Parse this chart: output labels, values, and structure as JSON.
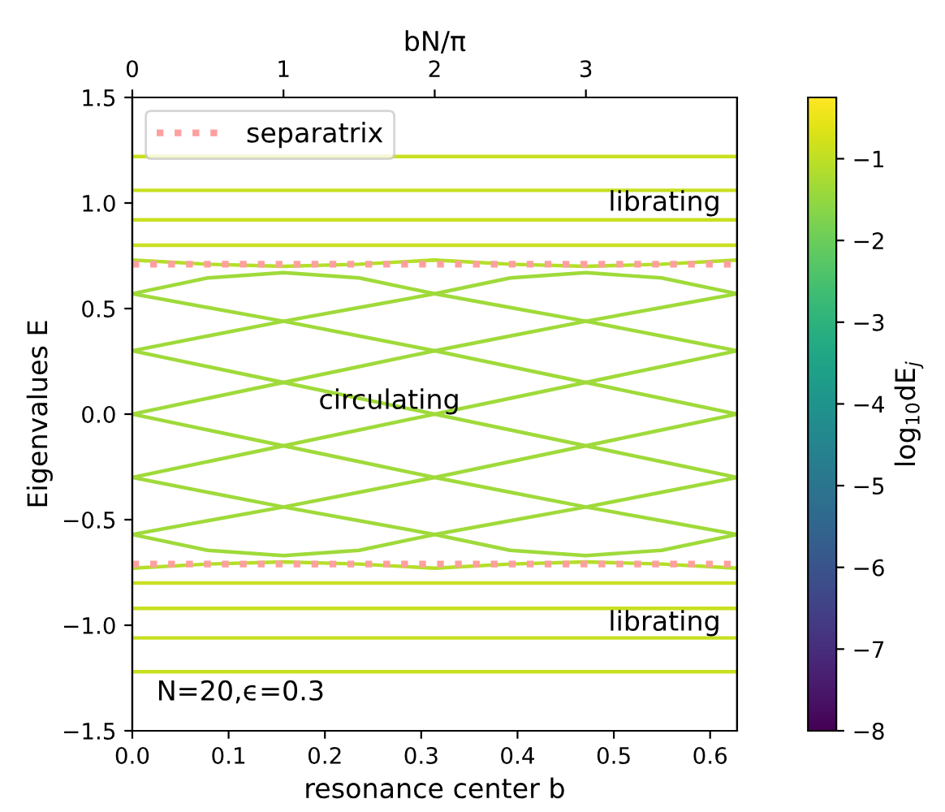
{
  "chart_data": {
    "type": "line",
    "xlabel": "resonance center b",
    "ylabel": "Eigenvalues E",
    "x2label": "bN/π",
    "clabel": "log$_{10}$dE$_{j}$",
    "xlim": [
      0,
      0.628
    ],
    "xticks": [
      {
        "value": 0,
        "label": "0.0"
      },
      0.1,
      0.2,
      0.3,
      0.4,
      0.5,
      0.6
    ],
    "x2lim": [
      0,
      4
    ],
    "x2ticks": [
      0,
      1,
      2,
      3
    ],
    "ylim": [
      -1.5,
      1.5
    ],
    "yticks": [
      -1.5,
      {
        "value": -1,
        "label": "−1.0"
      },
      -0.5,
      {
        "value": 0,
        "label": "0.0"
      },
      0.5,
      {
        "value": 1,
        "label": "1.0"
      },
      1.5
    ],
    "clim": [
      -8,
      -0.25
    ],
    "cticks": [
      -8,
      -7,
      -6,
      -5,
      -4,
      -3,
      -2,
      -1
    ],
    "legend": "top left",
    "grid": false,
    "series": [
      {
        "name": "separatrix",
        "color": "#ff9f9f",
        "line_style": "dotted",
        "x": [
          0,
          0.628
        ],
        "values": [
          0.71,
          0.71
        ]
      },
      {
        "color": "#ff9f9f",
        "line_style": "dotted",
        "x": [
          0,
          0.628
        ],
        "values": [
          -0.71,
          -0.71
        ]
      },
      {
        "color": "#c8e020",
        "line_style": "solid",
        "x": [
          0,
          0.628
        ],
        "values": [
          1.22,
          1.22
        ]
      },
      {
        "color": "#c8e020",
        "line_style": "solid",
        "x": [
          0,
          0.628
        ],
        "values": [
          1.06,
          1.06
        ]
      },
      {
        "color": "#c8e020",
        "line_style": "solid",
        "x": [
          0,
          0.628
        ],
        "values": [
          0.92,
          0.92
        ]
      },
      {
        "color": "#c8e020",
        "line_style": "solid",
        "x": [
          0,
          0.628
        ],
        "values": [
          0.8,
          0.8
        ]
      },
      {
        "color": "#c8e020",
        "line_style": "solid",
        "x": [
          0,
          0.628
        ],
        "values": [
          -0.8,
          -0.8
        ]
      },
      {
        "color": "#c8e020",
        "line_style": "solid",
        "x": [
          0,
          0.628
        ],
        "values": [
          -0.92,
          -0.92
        ]
      },
      {
        "color": "#c8e020",
        "line_style": "solid",
        "x": [
          0,
          0.628
        ],
        "values": [
          -1.06,
          -1.06
        ]
      },
      {
        "color": "#c8e020",
        "line_style": "solid",
        "x": [
          0,
          0.628
        ],
        "values": [
          -1.22,
          -1.22
        ]
      },
      {
        "color": "#b5de2b",
        "line_style": "solid",
        "x": [
          0,
          0.0785,
          0.157,
          0.2355,
          0.314,
          0.3925,
          0.471,
          0.5495,
          0.628
        ],
        "values": [
          0.73,
          0.71,
          0.7,
          0.71,
          0.73,
          0.71,
          0.7,
          0.71,
          0.73
        ]
      },
      {
        "color": "#b5de2b",
        "line_style": "solid",
        "x": [
          0,
          0.0785,
          0.157,
          0.2355,
          0.314,
          0.3925,
          0.471,
          0.5495,
          0.628
        ],
        "values": [
          -0.73,
          -0.71,
          -0.7,
          -0.71,
          -0.73,
          -0.71,
          -0.7,
          -0.71,
          -0.73
        ]
      },
      {
        "color": "#9fda3a",
        "line_style": "solid",
        "x": [
          0,
          0.0785,
          0.157,
          0.2355,
          0.314,
          0.3925,
          0.471,
          0.5495,
          0.628
        ],
        "values": [
          0.57,
          0.645,
          0.67,
          0.645,
          0.57,
          0.505,
          0.44,
          0.37,
          0.3
        ]
      },
      {
        "color": "#9fda3a",
        "line_style": "solid",
        "x": [
          0,
          0.0785,
          0.157,
          0.2355,
          0.314,
          0.3925,
          0.471,
          0.5495,
          0.628
        ],
        "values": [
          0.57,
          0.505,
          0.44,
          0.37,
          0.3,
          0.225,
          0.15,
          0.075,
          0
        ]
      },
      {
        "color": "#9fda3a",
        "line_style": "solid",
        "x": [
          0,
          0.0785,
          0.157,
          0.2355,
          0.314,
          0.3925,
          0.471,
          0.5495,
          0.628
        ],
        "values": [
          0.3,
          0.37,
          0.44,
          0.505,
          0.57,
          0.645,
          0.67,
          0.645,
          0.57
        ]
      },
      {
        "color": "#9fda3a",
        "line_style": "solid",
        "x": [
          0,
          0.0785,
          0.157,
          0.2355,
          0.314,
          0.3925,
          0.471,
          0.5495,
          0.628
        ],
        "values": [
          0.3,
          0.225,
          0.15,
          0.075,
          0,
          -0.075,
          -0.15,
          -0.225,
          -0.3
        ]
      },
      {
        "color": "#9fda3a",
        "line_style": "solid",
        "x": [
          0,
          0.0785,
          0.157,
          0.2355,
          0.314,
          0.3925,
          0.471,
          0.5495,
          0.628
        ],
        "values": [
          0,
          0.075,
          0.15,
          0.225,
          0.3,
          0.37,
          0.44,
          0.505,
          0.57
        ]
      },
      {
        "color": "#9fda3a",
        "line_style": "solid",
        "x": [
          0,
          0.0785,
          0.157,
          0.2355,
          0.314,
          0.3925,
          0.471,
          0.5495,
          0.628
        ],
        "values": [
          0,
          -0.075,
          -0.15,
          -0.225,
          -0.3,
          -0.37,
          -0.44,
          -0.505,
          -0.57
        ]
      },
      {
        "color": "#9fda3a",
        "line_style": "solid",
        "x": [
          0,
          0.0785,
          0.157,
          0.2355,
          0.314,
          0.3925,
          0.471,
          0.5495,
          0.628
        ],
        "values": [
          -0.3,
          -0.225,
          -0.15,
          -0.075,
          0,
          0.075,
          0.15,
          0.225,
          0.3
        ]
      },
      {
        "color": "#9fda3a",
        "line_style": "solid",
        "x": [
          0,
          0.0785,
          0.157,
          0.2355,
          0.314,
          0.3925,
          0.471,
          0.5495,
          0.628
        ],
        "values": [
          -0.3,
          -0.37,
          -0.44,
          -0.505,
          -0.57,
          -0.645,
          -0.67,
          -0.645,
          -0.57
        ]
      },
      {
        "color": "#9fda3a",
        "line_style": "solid",
        "x": [
          0,
          0.0785,
          0.157,
          0.2355,
          0.314,
          0.3925,
          0.471,
          0.5495,
          0.628
        ],
        "values": [
          -0.57,
          -0.505,
          -0.44,
          -0.37,
          -0.3,
          -0.225,
          -0.15,
          -0.075,
          0
        ]
      },
      {
        "color": "#9fda3a",
        "line_style": "solid",
        "x": [
          0,
          0.0785,
          0.157,
          0.2355,
          0.314,
          0.3925,
          0.471,
          0.5495,
          0.628
        ],
        "values": [
          -0.57,
          -0.645,
          -0.67,
          -0.645,
          -0.57,
          -0.505,
          -0.44,
          -0.37,
          -0.3
        ]
      }
    ],
    "annotations": [
      "librating",
      "circulating",
      "librating",
      "N=20,ϵ=0.3"
    ]
  }
}
